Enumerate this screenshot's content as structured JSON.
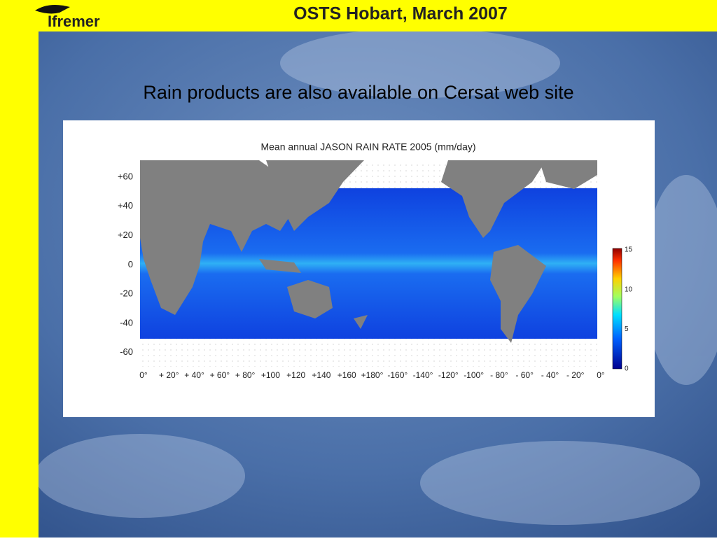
{
  "header": {
    "logo": "Ifremer",
    "title": "OSTS Hobart, March 2007"
  },
  "slide": {
    "heading": "Rain products are also available on Cersat web site"
  },
  "figure": {
    "title": "Mean annual JASON RAIN RATE 2005 (mm/day)",
    "y_labels": [
      "+60",
      "+40",
      "+20",
      "0",
      "-20",
      "-40",
      "-60"
    ],
    "x_labels": [
      "0°",
      "+ 20°",
      "+ 40°",
      "+ 60°",
      "+ 80°",
      "+100",
      "+120",
      "+140",
      "+160",
      "+180°",
      "-160°",
      "-140°",
      "-120°",
      "-100°",
      "- 80°",
      "- 60°",
      "- 40°",
      "- 20°",
      "0°"
    ],
    "colorbar_labels": [
      "15",
      "10",
      "5",
      "0"
    ]
  }
}
